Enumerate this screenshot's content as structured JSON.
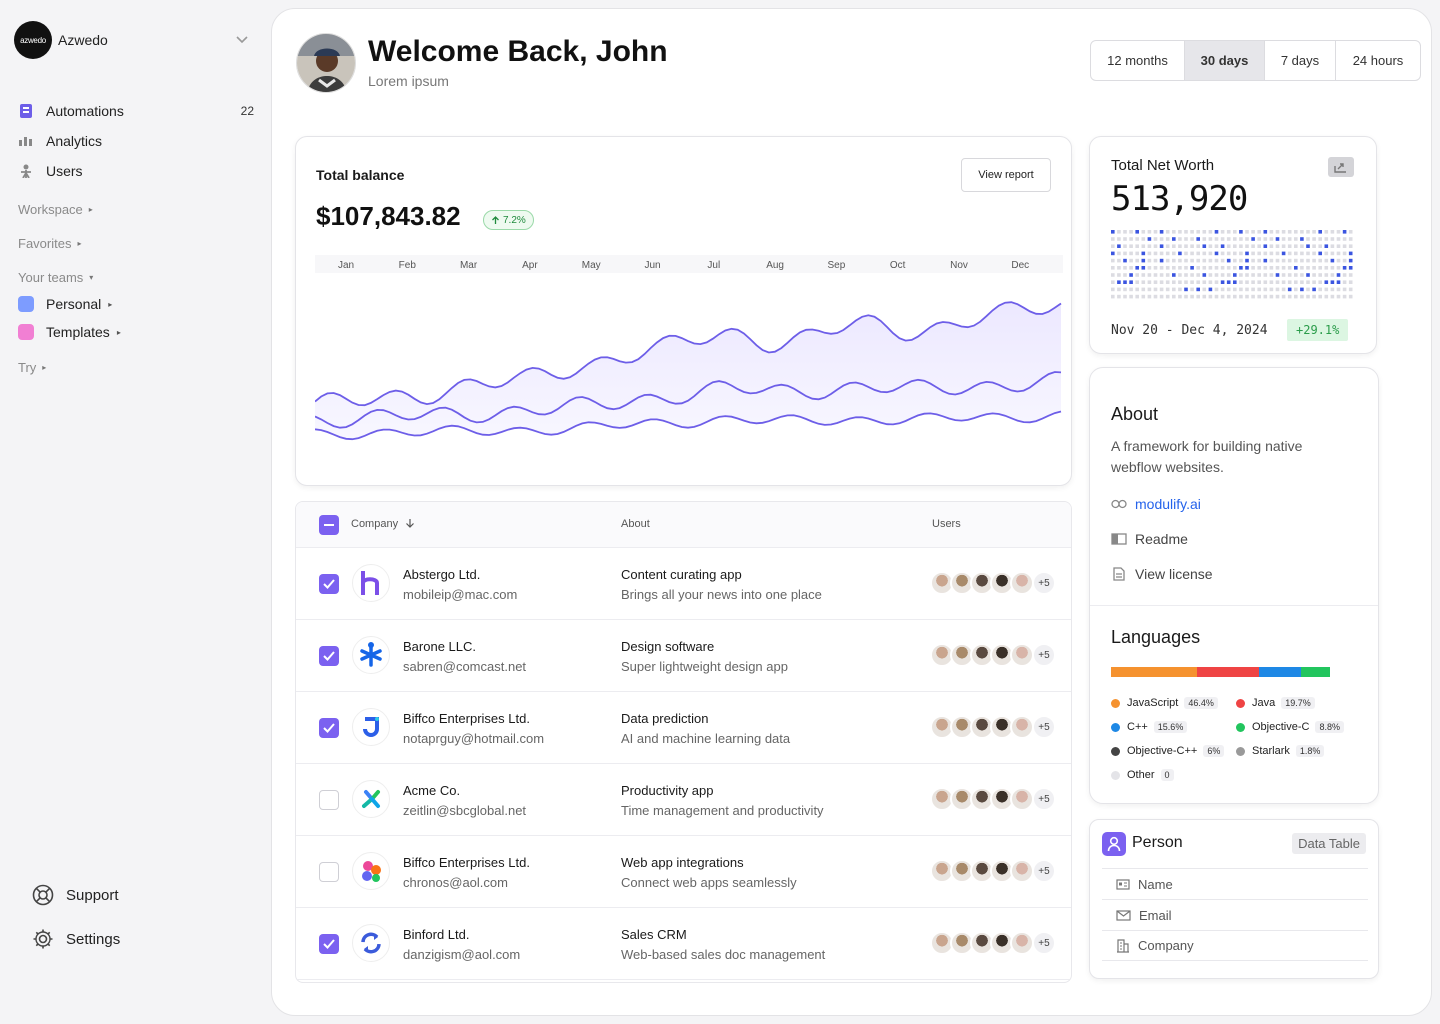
{
  "brand": {
    "logo_text": "azwedo",
    "name": "Azwedo"
  },
  "nav": [
    {
      "label": "Automations",
      "count": "22"
    },
    {
      "label": "Analytics"
    },
    {
      "label": "Users"
    }
  ],
  "sections": {
    "workspace": "Workspace",
    "favorites": "Favorites",
    "your_teams": "Your teams",
    "try": "Try"
  },
  "teams": [
    {
      "label": "Personal",
      "color": "#6b8cff"
    },
    {
      "label": "Templates",
      "color": "#e85fc0"
    }
  ],
  "bottom": {
    "support": "Support",
    "settings": "Settings"
  },
  "header": {
    "title": "Welcome Back, John",
    "subtitle": "Lorem ipsum"
  },
  "ranges": [
    {
      "label": "12 months",
      "active": false
    },
    {
      "label": "30 days",
      "active": true
    },
    {
      "label": "7 days",
      "active": false
    },
    {
      "label": "24 hours",
      "active": false
    }
  ],
  "balance": {
    "title": "Total balance",
    "value": "$107,843.82",
    "change": "7.2%",
    "view_report": "View report"
  },
  "chart_data": {
    "type": "area",
    "categories": [
      "Jan",
      "Feb",
      "Mar",
      "Apr",
      "May",
      "Jun",
      "Jul",
      "Aug",
      "Sep",
      "Oct",
      "Nov",
      "Dec"
    ],
    "series": [
      {
        "values": [
          18,
          22,
          26,
          30,
          38,
          44,
          52,
          48,
          56,
          54,
          60,
          66
        ]
      },
      {
        "values": [
          12,
          13,
          14,
          16,
          18,
          22,
          26,
          25,
          27,
          26,
          28,
          30
        ]
      },
      {
        "values": [
          5,
          6,
          6,
          7,
          8,
          10,
          12,
          11,
          12,
          12,
          13,
          14
        ]
      }
    ],
    "accent": "#6d5ee8"
  },
  "table": {
    "headers": {
      "company": "Company",
      "about": "About",
      "users": "Users"
    },
    "rows": [
      {
        "checked": true,
        "name": "Abstergo Ltd.",
        "email": "mobileip@mac.com",
        "about": "Content curating app",
        "about_sub": "Brings all your news into one place",
        "more": "+5"
      },
      {
        "checked": true,
        "name": "Barone LLC.",
        "email": "sabren@comcast.net",
        "about": "Design software",
        "about_sub": "Super lightweight design app",
        "more": "+5"
      },
      {
        "checked": true,
        "name": "Biffco Enterprises Ltd.",
        "email": "notaprguy@hotmail.com",
        "about": "Data prediction",
        "about_sub": "AI and machine learning data",
        "more": "+5"
      },
      {
        "checked": false,
        "name": "Acme Co.",
        "email": "zeitlin@sbcglobal.net",
        "about": "Productivity app",
        "about_sub": "Time management and productivity",
        "more": "+5"
      },
      {
        "checked": false,
        "name": "Biffco Enterprises Ltd.",
        "email": "chronos@aol.com",
        "about": "Web app integrations",
        "about_sub": "Connect web apps seamlessly",
        "more": "+5"
      },
      {
        "checked": true,
        "name": "Binford Ltd.",
        "email": "danzigism@aol.com",
        "about": "Sales CRM",
        "about_sub": "Web-based sales doc management",
        "more": "+5"
      }
    ]
  },
  "networth": {
    "title": "Total Net Worth",
    "value": "513,920",
    "range": "Nov 20 - Dec 4, 2024",
    "change": "+29.1%"
  },
  "about": {
    "title": "About",
    "description": "A framework for building native webflow websites.",
    "link": "modulify.ai",
    "readme": "Readme",
    "license": "View license"
  },
  "languages": {
    "title": "Languages",
    "items": [
      {
        "name": "JavaScript",
        "pct": "46.4%",
        "color": "#f5922f"
      },
      {
        "name": "Java",
        "pct": "19.7%",
        "color": "#ef4444"
      },
      {
        "name": "C++",
        "pct": "15.6%",
        "color": "#1e88e5"
      },
      {
        "name": "Objective-C",
        "pct": "8.8%",
        "color": "#22c55e"
      },
      {
        "name": "Objective-C++",
        "pct": "6%",
        "color": "#444444"
      },
      {
        "name": "Starlark",
        "pct": "1.8%",
        "color": "#9a9a9a"
      },
      {
        "name": "Other",
        "pct": "0",
        "color": "#e4e4e8"
      }
    ]
  },
  "person": {
    "title": "Person",
    "tag": "Data Table",
    "fields": [
      "Name",
      "Email",
      "Company"
    ]
  }
}
